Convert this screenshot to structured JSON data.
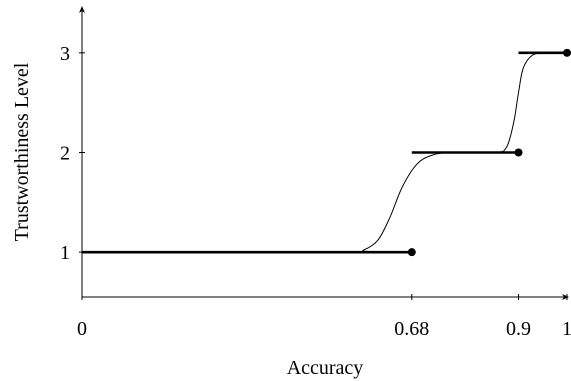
{
  "chart_data": {
    "type": "line",
    "title": "",
    "xlabel": "Accuracy",
    "ylabel": "Trustworthiness Level",
    "xlim": [
      0,
      1
    ],
    "ylim": [
      0.55,
      3.45
    ],
    "x_ticks": [
      {
        "value": 0,
        "label": "0"
      },
      {
        "value": 0.68,
        "label": "0.68"
      },
      {
        "value": 0.9,
        "label": "0.9"
      },
      {
        "value": 1,
        "label": "1"
      }
    ],
    "y_ticks": [
      {
        "value": 1,
        "label": "1"
      },
      {
        "value": 2,
        "label": "2"
      },
      {
        "value": 3,
        "label": "3"
      }
    ],
    "step_segments": [
      {
        "x_start": 0,
        "x_end": 0.68,
        "level": 1
      },
      {
        "x_start": 0.68,
        "x_end": 0.9,
        "level": 2
      },
      {
        "x_start": 0.9,
        "x_end": 1,
        "level": 3
      }
    ],
    "smooth_curve": [
      [
        0,
        1
      ],
      [
        0.55,
        1
      ],
      [
        0.58,
        1.02
      ],
      [
        0.61,
        1.12
      ],
      [
        0.635,
        1.35
      ],
      [
        0.66,
        1.65
      ],
      [
        0.69,
        1.88
      ],
      [
        0.72,
        1.97
      ],
      [
        0.76,
        2
      ],
      [
        0.85,
        2
      ],
      [
        0.875,
        2.05
      ],
      [
        0.89,
        2.3
      ],
      [
        0.9,
        2.6
      ],
      [
        0.91,
        2.85
      ],
      [
        0.93,
        2.98
      ],
      [
        0.96,
        3
      ],
      [
        1,
        3
      ]
    ],
    "grid": false,
    "legend": "none"
  }
}
